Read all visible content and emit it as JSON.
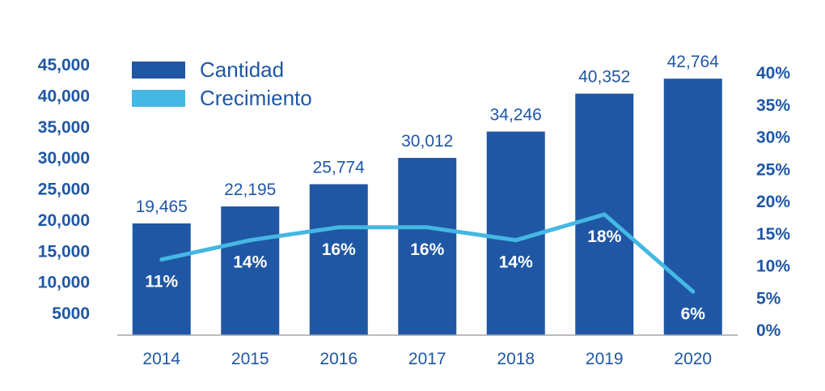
{
  "colors": {
    "bar": "#1f57a5",
    "line": "#45b7e3",
    "text": "#1f57a5",
    "axis": "#a6a6a6",
    "pct_text": "#ffffff"
  },
  "legend": {
    "bar_label": "Cantidad",
    "line_label": "Crecimiento"
  },
  "chart_data": {
    "type": "bar",
    "title": "",
    "xlabel": "",
    "ylabel": "",
    "categories": [
      "2014",
      "2015",
      "2016",
      "2017",
      "2018",
      "2019",
      "2020"
    ],
    "series": [
      {
        "name": "Cantidad",
        "type": "bar",
        "axis": "left",
        "values": [
          19465,
          22195,
          25774,
          30012,
          34246,
          40352,
          42764
        ],
        "labels": [
          "19,465",
          "22,195",
          "25,774",
          "30,012",
          "34,246",
          "40,352",
          "42,764"
        ]
      },
      {
        "name": "Crecimiento",
        "type": "line",
        "axis": "right",
        "values": [
          11,
          14,
          16,
          16,
          14,
          18,
          6
        ],
        "labels": [
          "11%",
          "14%",
          "16%",
          "16%",
          "14%",
          "18%",
          "6%"
        ]
      }
    ],
    "y_left": {
      "ticks": [
        5000,
        10000,
        15000,
        20000,
        25000,
        30000,
        35000,
        40000,
        45000
      ],
      "tick_labels": [
        "5000",
        "10,000",
        "15,000",
        "20,000",
        "25,000",
        "30,000",
        "35,000",
        "40,000",
        "45,000"
      ]
    },
    "y_right": {
      "range": [
        0,
        40
      ],
      "ticks": [
        0,
        5,
        10,
        15,
        20,
        25,
        30,
        35,
        40
      ],
      "tick_labels": [
        "0%",
        "5%",
        "10%",
        "15%",
        "20%",
        "25%",
        "30%",
        "35%",
        "40%"
      ]
    },
    "grid": false,
    "legend_position": "top-left"
  }
}
